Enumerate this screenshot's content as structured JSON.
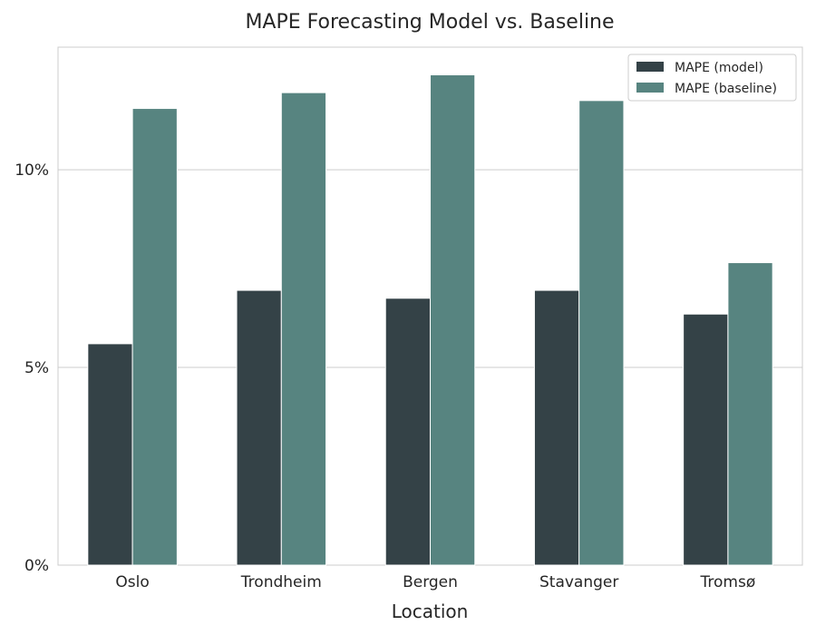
{
  "chart_data": {
    "type": "bar",
    "title": "MAPE Forecasting Model vs. Baseline",
    "xlabel": "Location",
    "ylabel": "",
    "categories": [
      "Oslo",
      "Trondheim",
      "Bergen",
      "Stavanger",
      "Tromsø"
    ],
    "series": [
      {
        "name": "MAPE (model)",
        "values": [
          5.6,
          6.95,
          6.75,
          6.95,
          6.35
        ],
        "color": "#344247"
      },
      {
        "name": "MAPE (baseline)",
        "values": [
          11.55,
          11.95,
          12.4,
          11.75,
          7.65
        ],
        "color": "#578480"
      }
    ],
    "ylim": [
      0,
      13.1
    ],
    "yticks": [
      {
        "value": 0,
        "label": "0%"
      },
      {
        "value": 5,
        "label": "5%"
      },
      {
        "value": 10,
        "label": "10%"
      }
    ],
    "grid": "horizontal",
    "legend_position": "top-right"
  }
}
